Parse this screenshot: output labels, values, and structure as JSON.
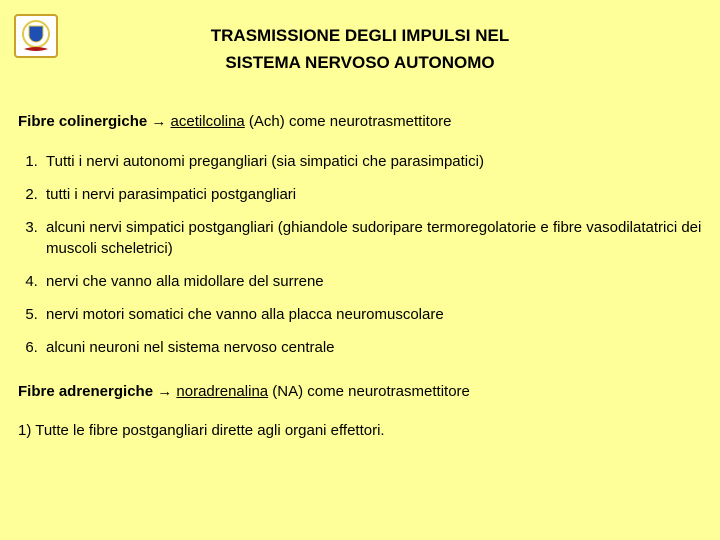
{
  "logo": {
    "frame_color": "#c9a227",
    "bg_color": "#ffffff",
    "shield_blue": "#1f4fb3",
    "shield_border": "#e0c84a",
    "ribbon_color": "#b01818"
  },
  "title": {
    "line1": "TRASMISSIONE DEGLI IMPULSI NEL",
    "line2": "SISTEMA NERVOSO AUTONOMO"
  },
  "cholinergic": {
    "label_bold": "Fibre colinergiche",
    "arrow": " → ",
    "underlined": "acetilcolina",
    "rest": " (Ach) come neurotrasmettitore",
    "items": [
      "Tutti i nervi autonomi pregangliari (sia simpatici che parasimpatici)",
      "tutti i nervi parasimpatici postgangliari",
      "alcuni nervi simpatici postgangliari (ghiandole sudoripare termoregolatorie e fibre vasodilatatrici dei muscoli scheletrici)",
      "nervi che vanno alla midollare del surrene",
      "nervi motori somatici che vanno alla placca neuromuscolare",
      "alcuni neuroni nel sistema nervoso centrale"
    ]
  },
  "adrenergic": {
    "label_bold": "Fibre adrenergiche",
    "arrow": " → ",
    "underlined": "noradrenalina",
    "rest": " (NA) come neurotrasmettitore",
    "last": "1) Tutte le fibre postgangliari dirette agli organi effettori."
  }
}
